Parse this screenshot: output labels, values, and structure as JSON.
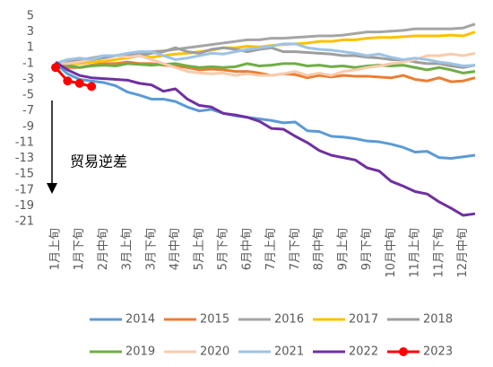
{
  "chart_data": {
    "type": "line",
    "annotation": "贸易逆差",
    "categories": [
      "1月上旬",
      null,
      "1月下旬",
      null,
      "2月中旬",
      null,
      "3月上旬",
      null,
      "3月下旬",
      null,
      "4月中旬",
      null,
      "5月上旬",
      null,
      "5月下旬",
      null,
      "6月中旬",
      null,
      "7月上旬",
      null,
      "7月下旬",
      null,
      "8月中旬",
      null,
      "9月上旬",
      null,
      "9月下旬",
      null,
      "10月中旬",
      null,
      "11月上旬",
      null,
      "11月下旬",
      null,
      "12月中旬",
      null
    ],
    "ylim": [
      -21,
      5
    ],
    "yticks": [
      5,
      3,
      1,
      -1,
      -3,
      -5,
      -7,
      -9,
      -11,
      -13,
      -15,
      -17,
      -19,
      -21
    ],
    "series": [
      {
        "name": "2014",
        "color": "#5b9bd5",
        "values": [
          -1,
          -2.3,
          -3,
          -3.2,
          -3.4,
          -3.8,
          -4.6,
          -5,
          -5.5,
          -5.5,
          -5.8,
          -6.5,
          -7,
          -6.8,
          -7.3,
          -7.6,
          -7.8,
          -8,
          -8.2,
          -8.5,
          -8.4,
          -9.5,
          -9.6,
          -10.2,
          -10.3,
          -10.5,
          -10.8,
          -10.9,
          -11.2,
          -11.6,
          -12.2,
          -12.1,
          -12.9,
          -13,
          -12.8,
          -12.6
        ]
      },
      {
        "name": "2015",
        "color": "#ed7d31",
        "values": [
          -1,
          -1.5,
          -1.5,
          -1.2,
          -1,
          -1,
          -0.8,
          -1,
          -1,
          -1.2,
          -1.3,
          -1.5,
          -1.8,
          -1.7,
          -1.8,
          -2,
          -2,
          -2.2,
          -2.5,
          -2.3,
          -2.4,
          -2.8,
          -2.5,
          -2.7,
          -2.5,
          -2.6,
          -2.6,
          -2.7,
          -2.8,
          -2.5,
          -3,
          -3.2,
          -2.8,
          -3.3,
          -3.2,
          -2.8
        ]
      },
      {
        "name": "2016",
        "color": "#a5a5a5",
        "values": [
          -1,
          -0.8,
          -0.5,
          -0.3,
          0,
          0,
          0.2,
          0.3,
          0.5,
          0.6,
          0.8,
          1,
          1.2,
          1.4,
          1.6,
          1.8,
          2,
          2,
          2.2,
          2.2,
          2.3,
          2.4,
          2.5,
          2.5,
          2.6,
          2.8,
          3,
          3,
          3.1,
          3.2,
          3.4,
          3.4,
          3.4,
          3.4,
          3.5,
          4
        ]
      },
      {
        "name": "2017",
        "color": "#ffc000",
        "values": [
          -1,
          -1,
          -1,
          -0.8,
          -0.7,
          -0.5,
          -0.3,
          0,
          -0.2,
          0,
          0.2,
          0.3,
          0.5,
          0.7,
          1,
          1,
          1.2,
          1.1,
          1.3,
          1.4,
          1.5,
          1.6,
          1.8,
          1.8,
          2,
          2,
          2.2,
          2.3,
          2.3,
          2.4,
          2.5,
          2.5,
          2.5,
          2.6,
          2.5,
          3
        ]
      },
      {
        "name": "2018",
        "color": "#9e9e9e",
        "values": [
          -1,
          -0.5,
          -0.8,
          -0.5,
          -0.3,
          0,
          0.2,
          0,
          0.3,
          0.5,
          1,
          0.5,
          0.3,
          0.8,
          1,
          0.8,
          0.5,
          0.8,
          1,
          0.5,
          0.5,
          0.4,
          0.3,
          0.2,
          0,
          0,
          -0.2,
          -0.3,
          -0.5,
          -0.5,
          -0.8,
          -1,
          -1,
          -1.3,
          -1.5,
          -1.2
        ]
      },
      {
        "name": "2019",
        "color": "#70ad47",
        "values": [
          -1,
          -1.2,
          -1.5,
          -1.3,
          -1.2,
          -1.3,
          -1,
          -1.1,
          -1.2,
          -1.1,
          -1,
          -1.3,
          -1.5,
          -1.4,
          -1.5,
          -1.4,
          -1,
          -1.3,
          -1.2,
          -1,
          -1,
          -1.3,
          -1.2,
          -1.4,
          -1.3,
          -1.5,
          -1.3,
          -1.2,
          -1.3,
          -1.2,
          -1.5,
          -1.8,
          -1.5,
          -1.8,
          -2.2,
          -2
        ]
      },
      {
        "name": "2020",
        "color": "#f8cbad",
        "values": [
          -1,
          -1,
          -0.8,
          -0.5,
          0,
          0,
          -0.2,
          0,
          -0.5,
          -1,
          -1.5,
          -2,
          -2.2,
          -2.3,
          -2.2,
          -2.5,
          -2.3,
          -2.5,
          -2.5,
          -2.3,
          -2,
          -2.5,
          -2.2,
          -2.5,
          -2,
          -1.8,
          -1.5,
          -1.3,
          -1,
          -0.8,
          -0.5,
          0,
          0,
          0.2,
          0,
          0.3
        ]
      },
      {
        "name": "2021",
        "color": "#9dc3e6",
        "values": [
          -1,
          -0.5,
          -0.3,
          -0.5,
          0,
          0,
          0.3,
          0.5,
          0.5,
          0,
          -0.5,
          -0.3,
          0,
          0.3,
          0.2,
          0.5,
          0.8,
          1,
          1.2,
          1.5,
          1.5,
          1,
          0.8,
          0.7,
          0.5,
          0.3,
          0,
          0.2,
          -0.2,
          -0.5,
          -0.3,
          -0.5,
          -0.8,
          -1,
          -1.3,
          -1.2
        ]
      },
      {
        "name": "2022",
        "color": "#7030a0",
        "values": [
          -0.8,
          -1.8,
          -2.5,
          -2.8,
          -2.9,
          -3,
          -3.1,
          -3.5,
          -3.7,
          -4.5,
          -4.2,
          -5.5,
          -6.3,
          -6.5,
          -7.3,
          -7.5,
          -7.8,
          -8.3,
          -9.2,
          -9.3,
          -10.2,
          -11,
          -12,
          -12.6,
          -12.9,
          -13.2,
          -14.2,
          -14.6,
          -15.9,
          -16.5,
          -17.2,
          -17.5,
          -18.5,
          -19.3,
          -20.2,
          -20
        ]
      },
      {
        "name": "2023",
        "color": "#ff0000",
        "markers": true,
        "values": [
          -1.5,
          -3.2,
          -3.5,
          -3.9,
          null,
          null,
          null,
          null,
          null,
          null,
          null,
          null,
          null,
          null,
          null,
          null,
          null,
          null,
          null,
          null,
          null,
          null,
          null,
          null,
          null,
          null,
          null,
          null,
          null,
          null,
          null,
          null,
          null,
          null,
          null,
          null
        ]
      }
    ]
  }
}
